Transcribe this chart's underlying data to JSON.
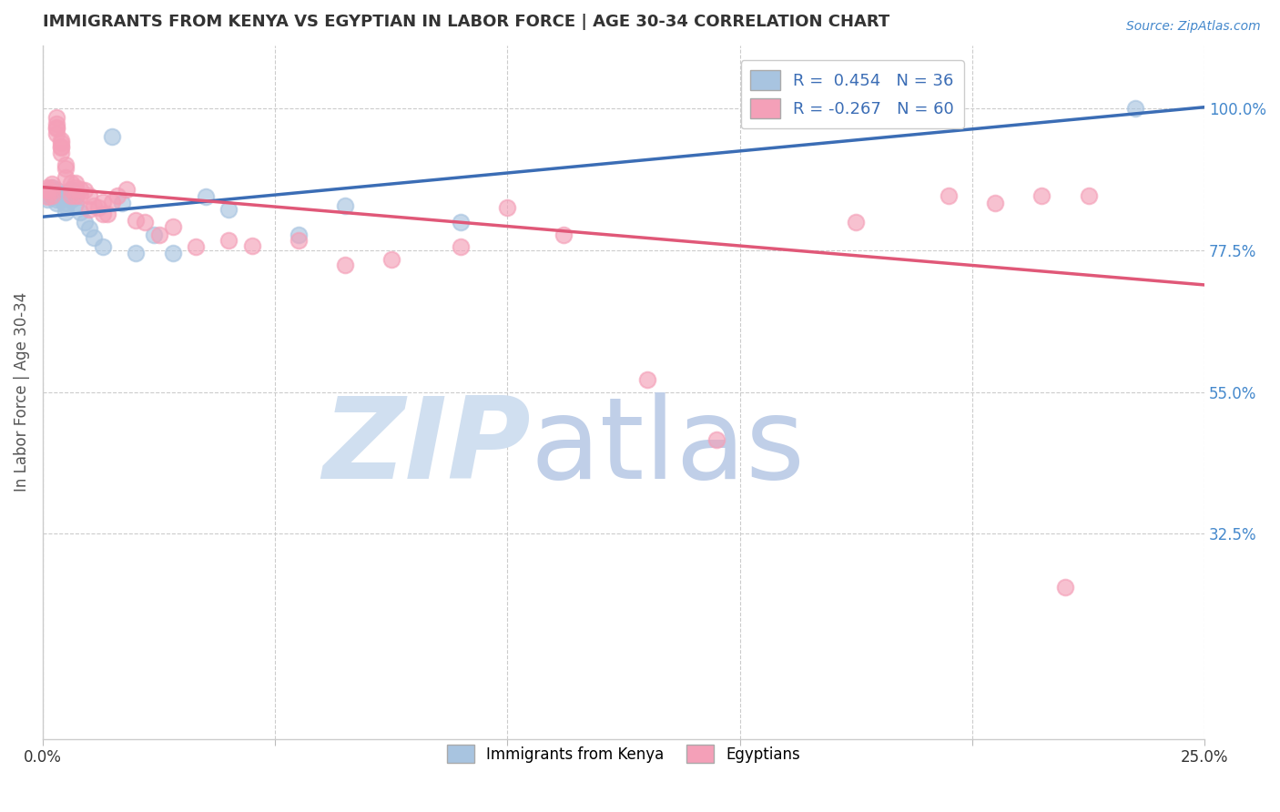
{
  "title": "IMMIGRANTS FROM KENYA VS EGYPTIAN IN LABOR FORCE | AGE 30-34 CORRELATION CHART",
  "source": "Source: ZipAtlas.com",
  "ylabel": "In Labor Force | Age 30-34",
  "xlim": [
    0.0,
    0.25
  ],
  "ylim": [
    0.0,
    1.1
  ],
  "xticks": [
    0.0,
    0.05,
    0.1,
    0.15,
    0.2,
    0.25
  ],
  "xtick_labels": [
    "0.0%",
    "",
    "",
    "",
    "",
    "25.0%"
  ],
  "ytick_labels_right": [
    "100.0%",
    "77.5%",
    "55.0%",
    "32.5%"
  ],
  "ytick_vals_right": [
    1.0,
    0.775,
    0.55,
    0.325
  ],
  "kenya_color": "#a8c4e0",
  "egypt_color": "#f4a0b8",
  "kenya_line_color": "#3b6db5",
  "egypt_line_color": "#e05878",
  "legend_kenya_label": "R =  0.454   N = 36",
  "legend_egypt_label": "R = -0.267   N = 60",
  "watermark_zip": "ZIP",
  "watermark_atlas": "atlas",
  "watermark_color_zip": "#d0dff0",
  "watermark_color_atlas": "#c0cfe8",
  "background_color": "#ffffff",
  "grid_color": "#cccccc",
  "title_color": "#333333",
  "axis_label_color": "#555555",
  "right_tick_color": "#4488cc",
  "kenya_x": [
    0.001,
    0.001,
    0.001,
    0.002,
    0.002,
    0.002,
    0.003,
    0.003,
    0.003,
    0.003,
    0.004,
    0.004,
    0.004,
    0.005,
    0.005,
    0.005,
    0.006,
    0.006,
    0.007,
    0.007,
    0.008,
    0.009,
    0.01,
    0.011,
    0.013,
    0.015,
    0.017,
    0.02,
    0.024,
    0.028,
    0.035,
    0.04,
    0.055,
    0.065,
    0.09,
    0.235
  ],
  "kenya_y": [
    0.862,
    0.87,
    0.855,
    0.87,
    0.86,
    0.875,
    0.865,
    0.87,
    0.855,
    0.85,
    0.865,
    0.855,
    0.86,
    0.845,
    0.835,
    0.85,
    0.87,
    0.855,
    0.86,
    0.848,
    0.835,
    0.82,
    0.81,
    0.795,
    0.78,
    0.955,
    0.85,
    0.77,
    0.8,
    0.77,
    0.86,
    0.84,
    0.8,
    0.845,
    0.82,
    1.0
  ],
  "egypt_x": [
    0.001,
    0.001,
    0.001,
    0.002,
    0.002,
    0.002,
    0.002,
    0.003,
    0.003,
    0.003,
    0.003,
    0.003,
    0.004,
    0.004,
    0.004,
    0.004,
    0.004,
    0.005,
    0.005,
    0.005,
    0.006,
    0.006,
    0.006,
    0.007,
    0.007,
    0.007,
    0.008,
    0.008,
    0.009,
    0.01,
    0.01,
    0.011,
    0.012,
    0.013,
    0.013,
    0.014,
    0.015,
    0.016,
    0.018,
    0.02,
    0.022,
    0.025,
    0.028,
    0.033,
    0.04,
    0.045,
    0.055,
    0.065,
    0.075,
    0.09,
    0.1,
    0.112,
    0.13,
    0.145,
    0.175,
    0.195,
    0.205,
    0.215,
    0.22,
    0.225
  ],
  "egypt_y": [
    0.87,
    0.86,
    0.875,
    0.88,
    0.868,
    0.875,
    0.862,
    0.975,
    0.985,
    0.968,
    0.96,
    0.97,
    0.94,
    0.93,
    0.945,
    0.938,
    0.95,
    0.89,
    0.905,
    0.91,
    0.872,
    0.882,
    0.862,
    0.875,
    0.882,
    0.862,
    0.872,
    0.862,
    0.87,
    0.862,
    0.84,
    0.845,
    0.842,
    0.852,
    0.832,
    0.832,
    0.852,
    0.862,
    0.872,
    0.822,
    0.82,
    0.8,
    0.812,
    0.78,
    0.79,
    0.782,
    0.79,
    0.752,
    0.76,
    0.78,
    0.842,
    0.8,
    0.57,
    0.475,
    0.82,
    0.862,
    0.85,
    0.862,
    0.24,
    0.862
  ],
  "kenya_line_x": [
    0.0,
    0.25
  ],
  "kenya_line_y": [
    0.828,
    1.002
  ],
  "egypt_line_x": [
    0.0,
    0.25
  ],
  "egypt_line_y": [
    0.875,
    0.72
  ]
}
